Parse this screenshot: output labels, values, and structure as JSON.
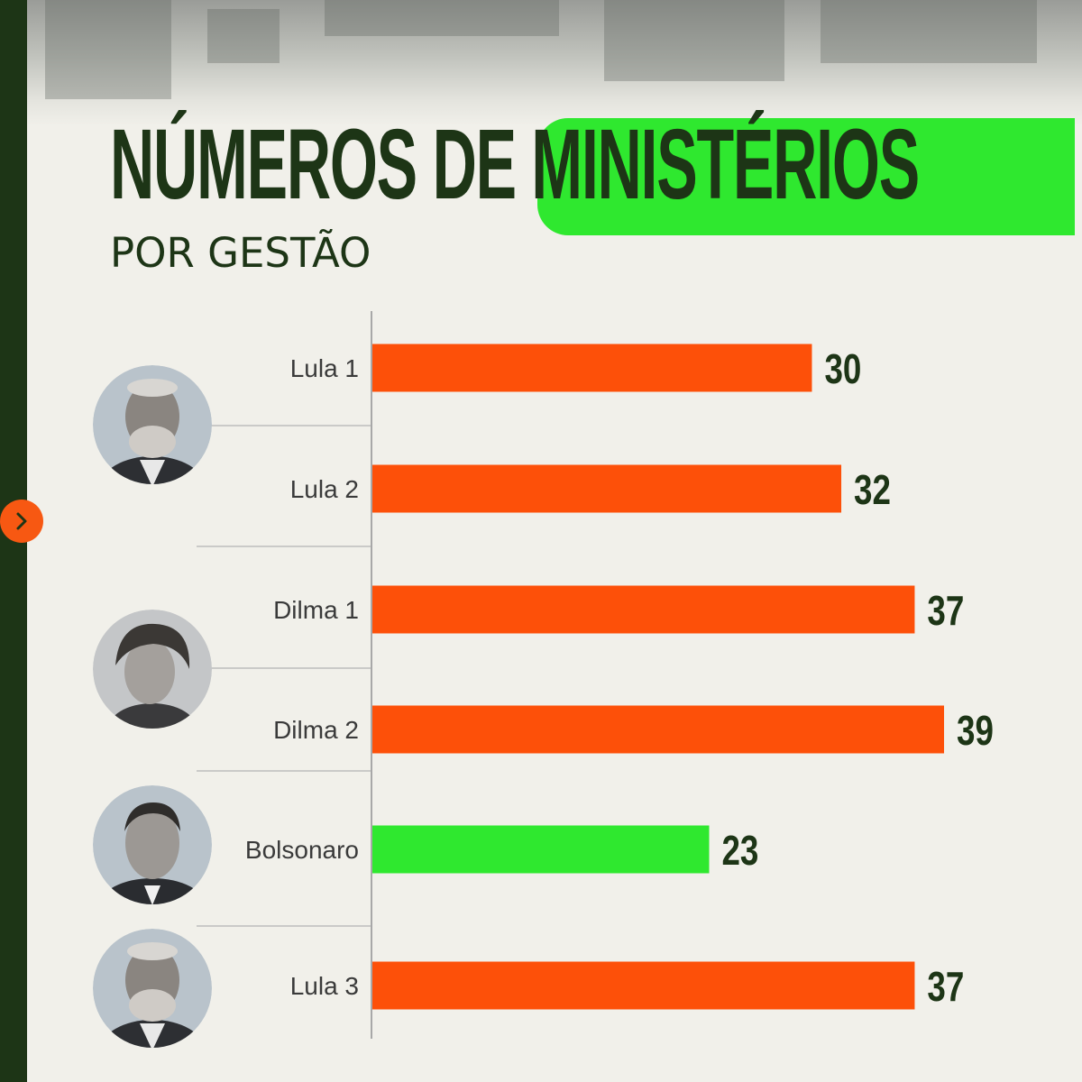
{
  "header": {
    "title_part1": "NÚMEROS DE",
    "title_part2": "MINISTÉRIOS",
    "subtitle": "POR GESTÃO"
  },
  "colors": {
    "accent_green": "#2fe82f",
    "dark_green": "#1d3516",
    "bar_orange": "#fd5009",
    "bar_green": "#2fe82f",
    "button_orange": "#f75812"
  },
  "icons": {
    "next": "chevron-right-icon",
    "avatar": "portrait-avatar"
  },
  "chart_data": {
    "type": "bar",
    "orientation": "horizontal",
    "categories": [
      "Lula 1",
      "Lula 2",
      "Dilma 1",
      "Dilma 2",
      "Bolsonaro",
      "Lula 3"
    ],
    "values": [
      30,
      32,
      37,
      39,
      23,
      37
    ],
    "bar_colors": [
      "#fd5009",
      "#fd5009",
      "#fd5009",
      "#fd5009",
      "#2fe82f",
      "#fd5009"
    ],
    "title": "NÚMEROS DE MINISTÉRIOS",
    "subtitle": "POR GESTÃO",
    "xlabel": "",
    "ylabel": "",
    "xlim": [
      0,
      39
    ],
    "grid": false,
    "legend": "none",
    "data_labels": true
  }
}
